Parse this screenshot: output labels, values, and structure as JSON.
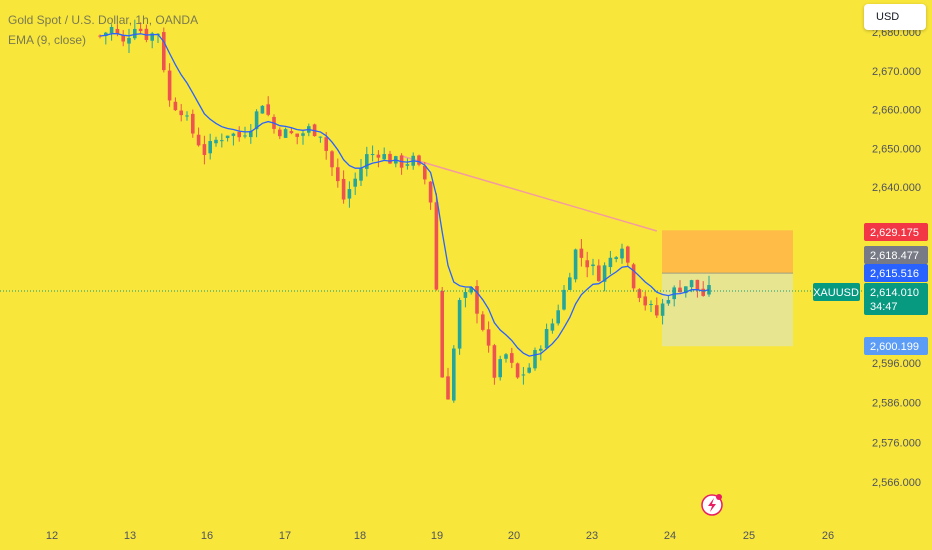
{
  "legend": {
    "symbol_line": "Gold Spot / U.S. Dollar, 1h, OANDA",
    "indicator_line": "EMA (9, close)"
  },
  "toolbar": {
    "currency_label": "USD"
  },
  "colors": {
    "background": "#f8e63b",
    "up": "#26a69a",
    "down": "#ef5350",
    "ema": "#2962ff",
    "trendline": "#f48fb1",
    "target_zone": "#ffb84a",
    "stop_zone": "#e4e49a",
    "current_price_tag": "#089981",
    "last_tag_red": "#f23645",
    "last_tag_grey": "#787b86",
    "last_tag_blue": "#2962ff",
    "last_tag_lightblue": "#5b9cf6"
  },
  "chart_data": {
    "type": "candlestick",
    "title": "Gold Spot / U.S. Dollar, 1h, OANDA",
    "symbol": "XAUUSD",
    "x_tick_labels": [
      "12",
      "13",
      "16",
      "17",
      "18",
      "19",
      "20",
      "23",
      "24",
      "25",
      "26"
    ],
    "y_tick_labels": [
      "2,680.000",
      "2,670.000",
      "2,660.000",
      "2,650.000",
      "2,640.000",
      "2,596.000",
      "2,586.000",
      "2,576.000",
      "2,566.000"
    ],
    "y_tick_values": [
      2680,
      2670,
      2660,
      2650,
      2640,
      2596,
      2586,
      2576,
      2566
    ],
    "ylim": [
      2558,
      2694
    ],
    "close_path": [
      [
        0,
        2679
      ],
      [
        2,
        2681
      ],
      [
        4,
        2677
      ],
      [
        6,
        2682
      ],
      [
        8,
        2679
      ],
      [
        10,
        2680
      ],
      [
        12,
        2662
      ],
      [
        14,
        2660
      ],
      [
        16,
        2654
      ],
      [
        18,
        2649
      ],
      [
        20,
        2652
      ],
      [
        22,
        2654
      ],
      [
        24,
        2653
      ],
      [
        26,
        2656
      ],
      [
        28,
        2662
      ],
      [
        30,
        2655
      ],
      [
        32,
        2654
      ],
      [
        34,
        2653
      ],
      [
        36,
        2655
      ],
      [
        38,
        2654
      ],
      [
        40,
        2645
      ],
      [
        42,
        2637
      ],
      [
        44,
        2642
      ],
      [
        46,
        2648
      ],
      [
        48,
        2649
      ],
      [
        50,
        2647
      ],
      [
        52,
        2646
      ],
      [
        54,
        2647
      ],
      [
        56,
        2642
      ],
      [
        57.5,
        2634
      ],
      [
        58.5,
        2595
      ],
      [
        60,
        2588
      ],
      [
        62,
        2611
      ],
      [
        64,
        2614
      ],
      [
        66,
        2605
      ],
      [
        68,
        2593
      ],
      [
        70,
        2598
      ],
      [
        72,
        2592
      ],
      [
        74,
        2595
      ],
      [
        76,
        2601
      ],
      [
        78,
        2606
      ],
      [
        80,
        2614
      ],
      [
        82,
        2624
      ],
      [
        84,
        2621
      ],
      [
        86,
        2618
      ],
      [
        88,
        2622
      ],
      [
        90,
        2626
      ],
      [
        92,
        2616
      ],
      [
        94,
        2611
      ],
      [
        96,
        2608
      ],
      [
        98,
        2613
      ],
      [
        100,
        2615
      ],
      [
        102,
        2616
      ],
      [
        104,
        2613
      ],
      [
        105,
        2614
      ]
    ],
    "indicator": {
      "name": "EMA",
      "period": 9,
      "source": "close"
    },
    "price_tags": [
      {
        "label": "2,629.175",
        "value": 2629.175,
        "color": "#f23645"
      },
      {
        "label": "2,618.477",
        "value": 2618.477,
        "color": "#787b86"
      },
      {
        "label": "2,615.516",
        "value": 2615.516,
        "color": "#2962ff"
      },
      {
        "label": "2,614.010",
        "value": 2614.01,
        "color": "#089981"
      },
      {
        "label": "2,600.199",
        "value": 2600.199,
        "color": "#5b9cf6"
      }
    ],
    "current_price": {
      "symbol": "XAUUSD",
      "price": "2,614.010",
      "countdown": "34:47",
      "value": 2614.01
    },
    "position_tool": {
      "entry": 2618.477,
      "target": 2629.175,
      "stop": 2600.199
    },
    "trendline": {
      "from": [
        52,
        2648
      ],
      "to": [
        96,
        2629
      ]
    },
    "grid": false,
    "legend_position": "top-left"
  }
}
